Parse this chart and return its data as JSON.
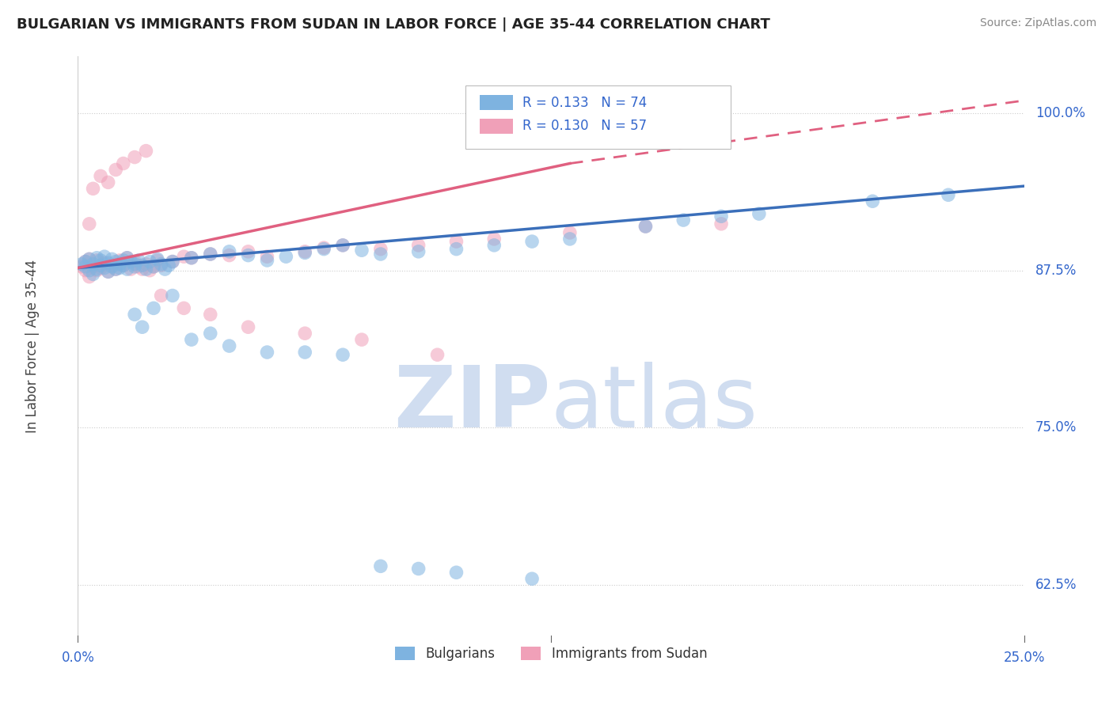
{
  "title": "BULGARIAN VS IMMIGRANTS FROM SUDAN IN LABOR FORCE | AGE 35-44 CORRELATION CHART",
  "source": "Source: ZipAtlas.com",
  "ylabel": "In Labor Force | Age 35-44",
  "xlim": [
    0.0,
    0.25
  ],
  "ylim": [
    0.585,
    1.045
  ],
  "ytick_labels": [
    "62.5%",
    "75.0%",
    "87.5%",
    "100.0%"
  ],
  "ytick_vals": [
    0.625,
    0.75,
    0.875,
    1.0
  ],
  "legend_blue_label": "R = 0.133   N = 74",
  "legend_pink_label": "R = 0.130   N = 57",
  "bottom_legend_blue": "Bulgarians",
  "bottom_legend_pink": "Immigrants from Sudan",
  "blue_color": "#7eb3e0",
  "pink_color": "#f0a0b8",
  "blue_line_color": "#3b6fba",
  "pink_line_color": "#e06080",
  "title_color": "#222222",
  "axis_label_color": "#3366cc",
  "watermark_color": "#d0ddf0",
  "background_color": "#ffffff",
  "grid_color": "#cccccc",
  "blue_scatter_x": [
    0.001,
    0.002,
    0.002,
    0.003,
    0.003,
    0.004,
    0.004,
    0.005,
    0.005,
    0.006,
    0.006,
    0.007,
    0.007,
    0.008,
    0.008,
    0.009,
    0.009,
    0.01,
    0.01,
    0.011,
    0.011,
    0.012,
    0.012,
    0.013,
    0.013,
    0.014,
    0.015,
    0.015,
    0.016,
    0.017,
    0.018,
    0.019,
    0.02,
    0.021,
    0.022,
    0.023,
    0.024,
    0.025,
    0.03,
    0.035,
    0.04,
    0.045,
    0.05,
    0.055,
    0.06,
    0.065,
    0.07,
    0.075,
    0.08,
    0.09,
    0.1,
    0.11,
    0.12,
    0.13,
    0.15,
    0.16,
    0.17,
    0.18,
    0.21,
    0.23,
    0.015,
    0.017,
    0.02,
    0.025,
    0.03,
    0.035,
    0.04,
    0.05,
    0.06,
    0.07,
    0.08,
    0.09,
    0.1,
    0.12
  ],
  "blue_scatter_y": [
    0.88,
    0.878,
    0.882,
    0.875,
    0.884,
    0.872,
    0.88,
    0.876,
    0.885,
    0.879,
    0.883,
    0.877,
    0.886,
    0.874,
    0.881,
    0.878,
    0.884,
    0.876,
    0.882,
    0.88,
    0.877,
    0.883,
    0.879,
    0.885,
    0.876,
    0.882,
    0.88,
    0.878,
    0.883,
    0.879,
    0.876,
    0.882,
    0.878,
    0.884,
    0.88,
    0.876,
    0.879,
    0.882,
    0.885,
    0.888,
    0.89,
    0.887,
    0.883,
    0.886,
    0.889,
    0.892,
    0.895,
    0.891,
    0.888,
    0.89,
    0.892,
    0.895,
    0.898,
    0.9,
    0.91,
    0.915,
    0.918,
    0.92,
    0.93,
    0.935,
    0.84,
    0.83,
    0.845,
    0.855,
    0.82,
    0.825,
    0.815,
    0.81,
    0.81,
    0.808,
    0.64,
    0.638,
    0.635,
    0.63
  ],
  "pink_scatter_x": [
    0.001,
    0.002,
    0.002,
    0.003,
    0.003,
    0.004,
    0.005,
    0.005,
    0.006,
    0.007,
    0.008,
    0.009,
    0.01,
    0.011,
    0.012,
    0.013,
    0.014,
    0.015,
    0.016,
    0.017,
    0.018,
    0.019,
    0.02,
    0.021,
    0.022,
    0.025,
    0.028,
    0.03,
    0.035,
    0.04,
    0.045,
    0.05,
    0.06,
    0.065,
    0.07,
    0.08,
    0.09,
    0.1,
    0.11,
    0.13,
    0.15,
    0.17,
    0.003,
    0.004,
    0.006,
    0.008,
    0.01,
    0.012,
    0.015,
    0.018,
    0.022,
    0.028,
    0.035,
    0.045,
    0.06,
    0.075,
    0.095
  ],
  "pink_scatter_y": [
    0.878,
    0.882,
    0.875,
    0.884,
    0.87,
    0.878,
    0.875,
    0.883,
    0.877,
    0.881,
    0.874,
    0.879,
    0.876,
    0.883,
    0.879,
    0.885,
    0.876,
    0.882,
    0.878,
    0.876,
    0.88,
    0.875,
    0.878,
    0.883,
    0.879,
    0.882,
    0.886,
    0.885,
    0.888,
    0.887,
    0.89,
    0.886,
    0.89,
    0.893,
    0.895,
    0.892,
    0.895,
    0.898,
    0.9,
    0.905,
    0.91,
    0.912,
    0.912,
    0.94,
    0.95,
    0.945,
    0.955,
    0.96,
    0.965,
    0.97,
    0.855,
    0.845,
    0.84,
    0.83,
    0.825,
    0.82,
    0.808
  ],
  "blue_trend": [
    0.0,
    0.25,
    0.877,
    0.942
  ],
  "pink_trend_solid": [
    0.0,
    0.13,
    0.877,
    0.96
  ],
  "pink_trend_dashed": [
    0.13,
    0.25,
    0.96,
    1.01
  ]
}
